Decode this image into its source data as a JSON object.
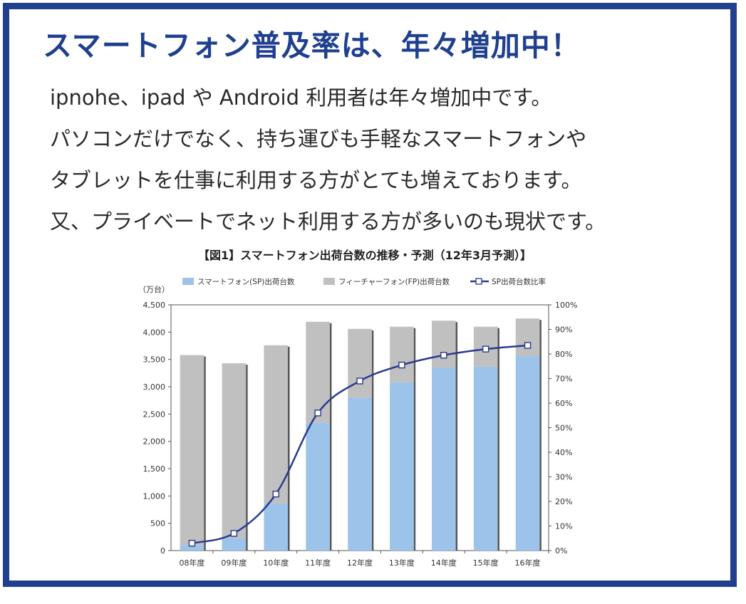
{
  "headline": "スマートフォン普及率は、年々増加中！",
  "body_lines": [
    "ipnohe、ipad や Android 利用者は年々増加中です。",
    "パソコンだけでなく、持ち運びも手軽なスマートフォンや",
    "タブレットを仕事に利用する方がとても増えております。",
    "又、プライベートでネット利用する方が多いのも現状です。"
  ],
  "colors": {
    "frame": "#1f3f8f",
    "headline": "#1f3f8f",
    "sp_bar": "#9cc3ea",
    "fp_bar": "#c0c0c0",
    "ratio_line": "#2b3a8f"
  },
  "chart_data": {
    "type": "bar",
    "stacked": true,
    "title": "【図1】スマートフォン出荷台数の推移・予測（12年3月予測）】",
    "ylabel": "（万台）",
    "categories": [
      "08年度",
      "09年度",
      "10年度",
      "11年度",
      "12年度",
      "13年度",
      "14年度",
      "15年度",
      "16年度"
    ],
    "series": [
      {
        "name": "スマートフォン(SP)出荷台数",
        "type": "bar",
        "axis": "left",
        "values": [
          100,
          230,
          860,
          2340,
          2800,
          3080,
          3350,
          3370,
          3560
        ]
      },
      {
        "name": "フィーチャーフォン(FP)出荷台数",
        "type": "bar",
        "axis": "left",
        "values": [
          3480,
          3200,
          2900,
          1850,
          1260,
          1020,
          860,
          730,
          690
        ]
      },
      {
        "name": "SP出荷台数比率",
        "type": "line",
        "axis": "right",
        "values": [
          3,
          7,
          23,
          56,
          69,
          75.5,
          79.5,
          82,
          83.5
        ]
      }
    ],
    "ylim": [
      0,
      4500
    ],
    "yticks": [
      "0",
      "500",
      "1,000",
      "1,500",
      "2,000",
      "2,500",
      "3,000",
      "3,500",
      "4,000",
      "4,500"
    ],
    "y2lim": [
      0,
      100
    ],
    "y2ticks": [
      "0%",
      "10%",
      "20%",
      "30%",
      "40%",
      "50%",
      "60%",
      "70%",
      "80%",
      "90%",
      "100%"
    ],
    "grid": false,
    "legend": "top"
  }
}
